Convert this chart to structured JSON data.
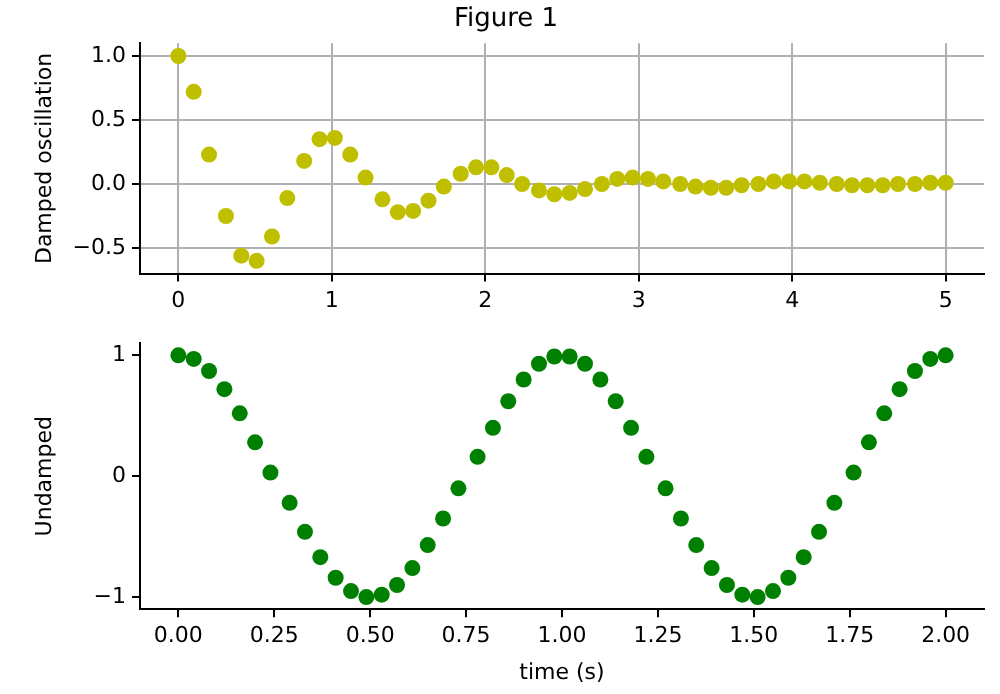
{
  "chart_data": [
    {
      "type": "scatter",
      "title": "Figure 1",
      "ylabel": "Damped oscillation",
      "marker": "circle",
      "grid": true,
      "xlim": [
        -0.25,
        5.25
      ],
      "xticks": [
        0,
        1,
        2,
        3,
        4,
        5
      ],
      "ylim": [
        -0.7,
        1.1
      ],
      "yticks": [
        {
          "value": -0.5,
          "label": "−0.5"
        },
        {
          "value": 0,
          "label": "0.0"
        },
        {
          "value": 0.5,
          "label": "0.5"
        },
        {
          "value": 1,
          "label": "1.0"
        }
      ],
      "x": [
        0,
        0.1,
        0.2,
        0.31,
        0.41,
        0.51,
        0.61,
        0.71,
        0.82,
        0.92,
        1.02,
        1.12,
        1.22,
        1.33,
        1.43,
        1.53,
        1.63,
        1.73,
        1.84,
        1.94,
        2.04,
        2.14,
        2.24,
        2.35,
        2.45,
        2.55,
        2.65,
        2.76,
        2.86,
        2.96,
        3.06,
        3.16,
        3.27,
        3.37,
        3.47,
        3.57,
        3.67,
        3.78,
        3.88,
        3.98,
        4.08,
        4.18,
        4.29,
        4.39,
        4.49,
        4.59,
        4.69,
        4.8,
        4.9,
        5
      ],
      "series": [
        {
          "color": "#bfbf00",
          "values": [
            1,
            0.72,
            0.23,
            -0.25,
            -0.56,
            -0.6,
            -0.41,
            -0.11,
            0.18,
            0.35,
            0.36,
            0.23,
            0.05,
            -0.12,
            -0.22,
            -0.21,
            -0.13,
            -0.02,
            0.08,
            0.13,
            0.13,
            0.07,
            0,
            -0.05,
            -0.08,
            -0.07,
            -0.04,
            0,
            0.04,
            0.05,
            0.04,
            0.02,
            0,
            -0.02,
            -0.03,
            -0.03,
            -0.01,
            0,
            0.02,
            0.02,
            0.02,
            0.01,
            0,
            -0.01,
            -0.01,
            -0.01,
            0,
            0,
            0.01,
            0.01
          ]
        }
      ]
    },
    {
      "type": "scatter",
      "ylabel": "Undamped",
      "xlabel": "time (s)",
      "marker": "circle",
      "grid": false,
      "xlim": [
        -0.1,
        2.1
      ],
      "xticks": [
        {
          "value": 0,
          "label": "0.00"
        },
        {
          "value": 0.25,
          "label": "0.25"
        },
        {
          "value": 0.5,
          "label": "0.50"
        },
        {
          "value": 0.75,
          "label": "0.75"
        },
        {
          "value": 1,
          "label": "1.00"
        },
        {
          "value": 1.25,
          "label": "1.25"
        },
        {
          "value": 1.5,
          "label": "1.50"
        },
        {
          "value": 1.75,
          "label": "1.75"
        },
        {
          "value": 2,
          "label": "2.00"
        }
      ],
      "ylim": [
        -1.1,
        1.1
      ],
      "yticks": [
        {
          "value": -1,
          "label": "−1"
        },
        0,
        1
      ],
      "x": [
        0,
        0.04,
        0.08,
        0.12,
        0.16,
        0.2,
        0.24,
        0.29,
        0.33,
        0.37,
        0.41,
        0.45,
        0.49,
        0.53,
        0.57,
        0.61,
        0.65,
        0.69,
        0.73,
        0.78,
        0.82,
        0.86,
        0.9,
        0.94,
        0.98,
        1.02,
        1.06,
        1.1,
        1.14,
        1.18,
        1.22,
        1.27,
        1.31,
        1.35,
        1.39,
        1.43,
        1.47,
        1.51,
        1.55,
        1.59,
        1.63,
        1.67,
        1.71,
        1.76,
        1.8,
        1.84,
        1.88,
        1.92,
        1.96,
        2
      ],
      "series": [
        {
          "color": "#008000",
          "values": [
            1,
            0.97,
            0.87,
            0.72,
            0.52,
            0.28,
            0.03,
            -0.22,
            -0.46,
            -0.67,
            -0.84,
            -0.95,
            -1,
            -0.98,
            -0.9,
            -0.76,
            -0.57,
            -0.35,
            -0.1,
            0.16,
            0.4,
            0.62,
            0.8,
            0.93,
            0.99,
            0.99,
            0.93,
            0.8,
            0.62,
            0.4,
            0.16,
            -0.1,
            -0.35,
            -0.57,
            -0.76,
            -0.9,
            -0.98,
            -1,
            -0.95,
            -0.84,
            -0.67,
            -0.46,
            -0.22,
            0.03,
            0.28,
            0.52,
            0.72,
            0.87,
            0.97,
            1
          ]
        }
      ]
    }
  ]
}
